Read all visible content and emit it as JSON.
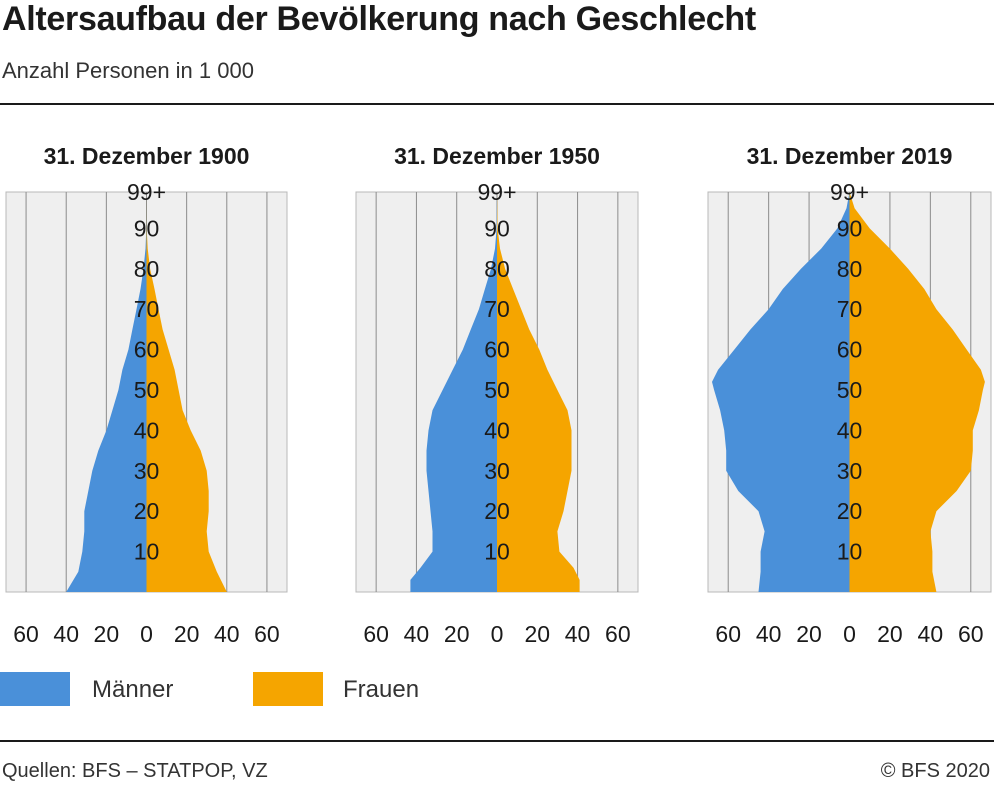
{
  "title": "Altersaufbau der Bevölkerung nach Geschlecht",
  "subtitle": "Anzahl Personen in 1 000",
  "legend": {
    "men": {
      "label": "Männer",
      "color": "#4a90d9"
    },
    "women": {
      "label": "Frauen",
      "color": "#f5a500"
    }
  },
  "source": "Quellen: BFS – STATPOP, VZ",
  "copyright": "© BFS 2020",
  "chart_data": [
    {
      "type": "pyramid",
      "title": "31. Dezember 1900",
      "age_ticks": [
        "10",
        "20",
        "30",
        "40",
        "50",
        "60",
        "70",
        "80",
        "90",
        "99+"
      ],
      "x_ticks": [
        "60",
        "40",
        "20",
        "0",
        "20",
        "40",
        "60"
      ],
      "xlim": [
        -70,
        70
      ],
      "ages": [
        0,
        5,
        10,
        15,
        20,
        25,
        30,
        35,
        40,
        45,
        50,
        55,
        60,
        65,
        70,
        75,
        80,
        85,
        90
      ],
      "men": [
        40,
        34,
        32,
        31,
        31,
        29,
        27,
        24,
        20,
        17,
        14,
        12,
        9,
        7,
        5,
        3,
        1.5,
        0.5,
        0.1
      ],
      "women": [
        40,
        35,
        31,
        30,
        31,
        31,
        30,
        27,
        22,
        18,
        16,
        14,
        11,
        8,
        6,
        4,
        1.8,
        0.6,
        0.1
      ]
    },
    {
      "type": "pyramid",
      "title": "31. Dezember 1950",
      "age_ticks": [
        "10",
        "20",
        "30",
        "40",
        "50",
        "60",
        "70",
        "80",
        "90",
        "99+"
      ],
      "x_ticks": [
        "60",
        "40",
        "20",
        "0",
        "20",
        "40",
        "60"
      ],
      "xlim": [
        -70,
        70
      ],
      "ages": [
        0,
        3,
        6,
        10,
        15,
        20,
        25,
        30,
        35,
        40,
        45,
        50,
        55,
        60,
        65,
        70,
        75,
        80,
        85,
        90
      ],
      "men": [
        43,
        43,
        38,
        32,
        32,
        33,
        34,
        35,
        35,
        34,
        32,
        27,
        22,
        17,
        13,
        9,
        6,
        3,
        1,
        0.2
      ],
      "women": [
        41,
        41,
        38,
        31,
        30,
        33,
        35,
        37,
        37,
        37,
        35,
        30,
        25,
        21,
        16,
        12,
        8,
        4,
        1.5,
        0.3
      ]
    },
    {
      "type": "pyramid",
      "title": "31. Dezember 2019",
      "age_ticks": [
        "10",
        "20",
        "30",
        "40",
        "50",
        "60",
        "70",
        "80",
        "90",
        "99+"
      ],
      "x_ticks": [
        "60",
        "40",
        "20",
        "0",
        "20",
        "40",
        "60"
      ],
      "xlim": [
        -70,
        70
      ],
      "ages": [
        0,
        5,
        10,
        15,
        20,
        25,
        30,
        35,
        40,
        45,
        50,
        52,
        55,
        60,
        65,
        70,
        75,
        80,
        85,
        90,
        95
      ],
      "men": [
        45,
        44,
        44,
        42,
        45,
        55,
        61,
        61,
        62,
        64,
        67,
        68,
        65,
        57,
        49,
        40,
        33,
        24,
        14,
        6,
        1.5
      ],
      "women": [
        43,
        41,
        41,
        40,
        43,
        53,
        60,
        61,
        61,
        64,
        66,
        67,
        65,
        58,
        51,
        43,
        37,
        29,
        20,
        10,
        2.5
      ]
    }
  ]
}
